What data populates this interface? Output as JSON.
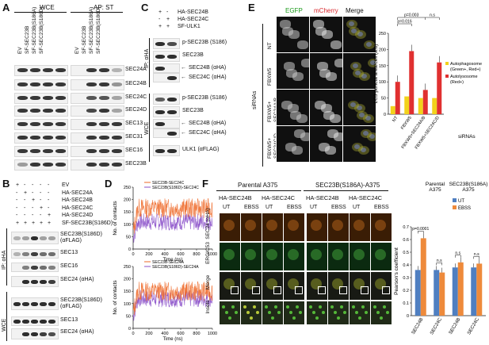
{
  "panels": {
    "A": "A",
    "B": "B",
    "C": "C",
    "D": "D",
    "E": "E",
    "F": "F"
  },
  "A": {
    "groups": [
      "WCE",
      "AP: ST"
    ],
    "lanes": [
      "EV",
      "SF-SEC23B",
      "SF-SEC23B(S186A)",
      "SF-SEC23B(S186D)",
      "EV",
      "SF-SEC23B",
      "SF-SEC23B(S186A)",
      "SF-SEC23B(S186D)"
    ],
    "rows": [
      "SEC24A",
      "SEC24B",
      "SEC24C",
      "SEC24D",
      "SEC13",
      "SEC31",
      "SEC16",
      "SEC23B"
    ]
  },
  "B": {
    "conditions": [
      "EV",
      "HA-SEC24A",
      "HA-SEC24B",
      "HA-SEC24C",
      "HA-SEC24D",
      "SF-SEC23B(S186D)"
    ],
    "signs": [
      [
        "+",
        "-",
        "-",
        "-",
        "-",
        "+"
      ],
      [
        "-",
        "+",
        "-",
        "-",
        "-",
        "+"
      ],
      [
        "-",
        "-",
        "+",
        "-",
        "-",
        "+"
      ],
      [
        "-",
        "-",
        "-",
        "+",
        "-",
        "+"
      ],
      [
        "-",
        "-",
        "-",
        "-",
        "+",
        "+"
      ]
    ],
    "groups": [
      "IP: αHA",
      "WCE"
    ],
    "rows": [
      "SEC23B(S186D) (αFLAG)",
      "SEC13",
      "SEC16",
      "SEC24 (αHA)",
      "SEC23B(S186D) (αFLAG)",
      "SEC13",
      "SEC24 (αHA)"
    ]
  },
  "C": {
    "conditions": [
      "HA-SEC24B",
      "HA-SEC24C",
      "SF-ULK1"
    ],
    "signs": [
      [
        "+",
        "-"
      ],
      [
        "-",
        "+"
      ],
      [
        "+",
        "+"
      ]
    ],
    "groups": [
      "IP: αHA",
      "WCE"
    ],
    "rows": [
      "p-SEC23B (S186)",
      "SEC23B",
      "SEC24B (αHA)",
      "SEC24C (αHA)",
      "p-SEC23B (S186)",
      "SEC23B",
      "SEC24B (αHA)",
      "SEC24C (αHA)",
      "ULK1 (αFLAG)"
    ]
  },
  "D": {
    "ylabel": "No. of contacts",
    "xlabel": "Time (ns)",
    "top_legend": [
      "SEC23B-SEC24C",
      "SEC23B(S186D)-SEC24C"
    ],
    "bottom_legend": [
      "SEC23B-SEC24A",
      "SEC23B(S186D)-SEC24A"
    ],
    "yticks": [
      "0",
      "50",
      "100",
      "150",
      "200",
      "250"
    ],
    "xticks": [
      "0",
      "200",
      "400",
      "600",
      "800",
      "1000"
    ]
  },
  "E": {
    "columns": [
      "EGFP",
      "mCherry",
      "Merge"
    ],
    "side_label": "siRNAs",
    "rows": [
      "NT",
      "FBXW5",
      "FBXW5+ SEC24A/B",
      "FBXW5+ SEC24C/D"
    ],
    "chart": {
      "ylabel": "LC3 puncta area/cell (a.u)",
      "pvalues": [
        "p=0.016",
        "p=0.003",
        "n.s"
      ],
      "legend": [
        "Autophagosome (Green+, Red+)",
        "Autolysosome (Red+)"
      ],
      "xlabel": "siRNAs",
      "yticks": [
        "0",
        "50",
        "100",
        "150",
        "200",
        "250"
      ]
    }
  },
  "F": {
    "groups": [
      "Parental A375",
      "SEC23B(S186A)-A375"
    ],
    "subgroups": [
      "HA-SEC24B",
      "HA-SEC24C",
      "HA-SEC24B",
      "HA-SEC24C"
    ],
    "treatments": [
      "UT",
      "EBSS",
      "UT",
      "EBSS",
      "UT",
      "EBSS",
      "UT",
      "EBSS"
    ],
    "rows": [
      "SEC24 (αHA)",
      "ERGIC53",
      "Merge",
      "Insets"
    ],
    "chart": {
      "ylabel": "Pearson's coefficient",
      "titles": [
        "Parental A375",
        "SEC23B(S186A) A375"
      ],
      "legend": [
        "UT",
        "EBSS"
      ],
      "pvalues": [
        "p=0.0001",
        "n.s",
        "n.s",
        "n.s"
      ],
      "yticks": [
        "0",
        "0.1",
        "0.2",
        "0.3",
        "0.4",
        "0.5",
        "0.6",
        "0.7"
      ]
    }
  },
  "chart_data": [
    {
      "type": "bar",
      "categories": [
        "NT",
        "FBXW5",
        "FBXW5+SEC24A/B",
        "FBXW5+SEC24C/D"
      ],
      "series": [
        {
          "name": "Autophagosome (Green+, Red+)",
          "values": [
            25,
            55,
            50,
            50
          ],
          "color": "#f2d21b"
        },
        {
          "name": "Autolysosome (Red+)",
          "values": [
            100,
            195,
            75,
            160
          ],
          "color": "#e03030"
        }
      ],
      "ylabel": "LC3 puncta area/cell (a.u)",
      "ylim": [
        0,
        250
      ]
    },
    {
      "type": "bar",
      "categories": [
        "SEC24B",
        "SEC24C",
        "SEC24B",
        "SEC24C"
      ],
      "series": [
        {
          "name": "UT",
          "values": [
            0.36,
            0.36,
            0.38,
            0.38
          ],
          "color": "#4f7fc1"
        },
        {
          "name": "EBSS",
          "values": [
            0.61,
            0.34,
            0.42,
            0.41
          ],
          "color": "#ee8a3b"
        }
      ],
      "ylabel": "Pearson's coefficient",
      "ylim": [
        0,
        0.7
      ]
    },
    {
      "type": "line",
      "series": [
        {
          "name": "SEC23B-SEC24C"
        },
        {
          "name": "SEC23B(S186D)-SEC24C"
        }
      ],
      "xlim": [
        0,
        1000
      ],
      "ylim": [
        0,
        250
      ]
    },
    {
      "type": "line",
      "series": [
        {
          "name": "SEC23B-SEC24A"
        },
        {
          "name": "SEC23B(S186D)-SEC24A"
        }
      ],
      "xlim": [
        0,
        1000
      ],
      "ylim": [
        0,
        250
      ]
    }
  ]
}
